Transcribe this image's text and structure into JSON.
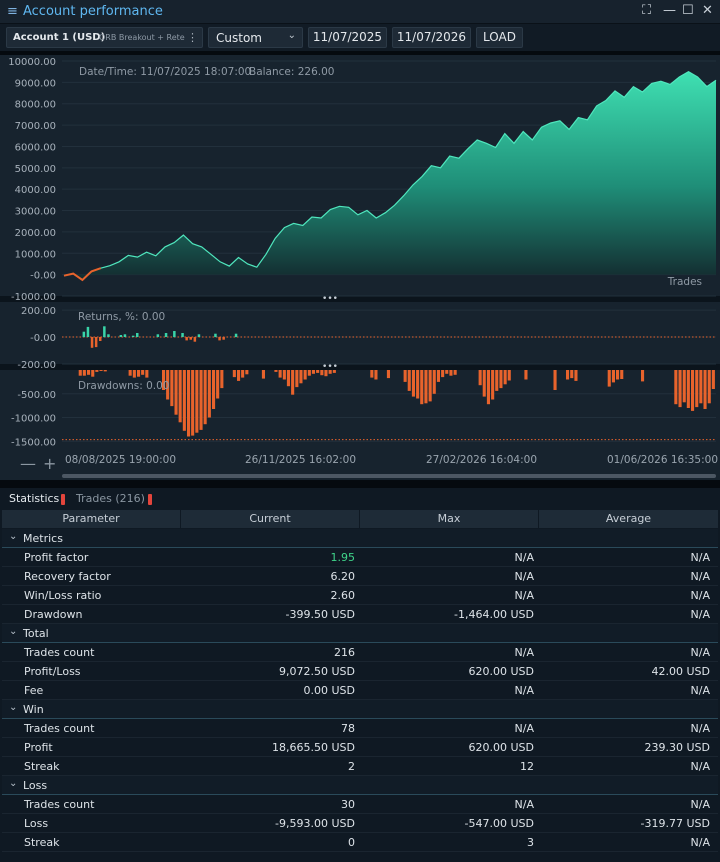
{
  "window": {
    "title": "Account performance",
    "buttons": [
      "⛶",
      "—",
      "☐",
      "✕"
    ]
  },
  "toolbar": {
    "account_name": "Account 1 (USD)",
    "strategy_name": "ORB Breakout + Rete",
    "range_select": "Custom",
    "date_from": "11/07/2025",
    "date_to": "11/07/2026",
    "load_label": "LOAD"
  },
  "chart": {
    "info_datetime": "Date/Time: 11/07/2025 18:07:00",
    "info_balance": "Balance: 226.00",
    "trades_label": "Trades",
    "returns_label": "Returns, %: 0.00",
    "drawdowns_label": "Drawdowns: 0.00",
    "x_ticks": [
      "08/08/2025 19:00:00",
      "26/11/2025 16:02:00",
      "27/02/2026 16:04:00",
      "01/06/2026 16:35:00"
    ],
    "colors": {
      "accent": "#39d4a8",
      "negative": "#e8632c",
      "panel_bg": "#17232e"
    }
  },
  "chart_data": [
    {
      "type": "area",
      "name": "balance",
      "y_ticks": [
        "10000.00",
        "9000.00",
        "8000.00",
        "7000.00",
        "6000.00",
        "5000.00",
        "4000.00",
        "3000.00",
        "2000.00",
        "1000.00",
        "-0.00",
        "-1000.00"
      ],
      "ylim": [
        -1000,
        10000
      ],
      "points": [
        [
          0,
          -50
        ],
        [
          1,
          50
        ],
        [
          2,
          -250
        ],
        [
          3,
          150
        ],
        [
          4,
          300
        ],
        [
          5,
          420
        ],
        [
          6,
          600
        ],
        [
          7,
          900
        ],
        [
          8,
          820
        ],
        [
          9,
          1050
        ],
        [
          10,
          880
        ],
        [
          11,
          1300
        ],
        [
          12,
          1500
        ],
        [
          13,
          1850
        ],
        [
          14,
          1450
        ],
        [
          15,
          1300
        ],
        [
          16,
          950
        ],
        [
          17,
          600
        ],
        [
          18,
          400
        ],
        [
          19,
          800
        ],
        [
          20,
          500
        ],
        [
          21,
          350
        ],
        [
          22,
          950
        ],
        [
          23,
          1700
        ],
        [
          24,
          2200
        ],
        [
          25,
          2400
        ],
        [
          26,
          2300
        ],
        [
          27,
          2700
        ],
        [
          28,
          2650
        ],
        [
          29,
          3050
        ],
        [
          30,
          3200
        ],
        [
          31,
          3150
        ],
        [
          32,
          2800
        ],
        [
          33,
          3000
        ],
        [
          34,
          2650
        ],
        [
          35,
          2900
        ],
        [
          36,
          3250
        ],
        [
          37,
          3700
        ],
        [
          38,
          4200
        ],
        [
          39,
          4600
        ],
        [
          40,
          5100
        ],
        [
          41,
          5000
        ],
        [
          42,
          5550
        ],
        [
          43,
          5450
        ],
        [
          44,
          5900
        ],
        [
          45,
          6300
        ],
        [
          46,
          6150
        ],
        [
          47,
          5950
        ],
        [
          48,
          6600
        ],
        [
          49,
          6150
        ],
        [
          50,
          6700
        ],
        [
          51,
          6300
        ],
        [
          52,
          6900
        ],
        [
          53,
          7100
        ],
        [
          54,
          7200
        ],
        [
          55,
          6800
        ],
        [
          56,
          7350
        ],
        [
          57,
          7250
        ],
        [
          58,
          7900
        ],
        [
          59,
          8150
        ],
        [
          60,
          8600
        ],
        [
          61,
          8300
        ],
        [
          62,
          8800
        ],
        [
          63,
          8550
        ],
        [
          64,
          8950
        ],
        [
          65,
          9050
        ],
        [
          66,
          8900
        ],
        [
          67,
          9250
        ],
        [
          68,
          9500
        ],
        [
          69,
          9250
        ],
        [
          70,
          8800
        ],
        [
          71,
          9100
        ]
      ]
    },
    {
      "type": "bar",
      "name": "returns",
      "y_ticks": [
        "200.00",
        "-0.00",
        "-200.00"
      ],
      "ylim": [
        -200,
        260
      ],
      "values": [
        0,
        0,
        0,
        0,
        0,
        40,
        75,
        -80,
        -75,
        -30,
        80,
        20,
        0,
        0,
        15,
        20,
        0,
        10,
        30,
        0,
        0,
        0,
        0,
        20,
        0,
        30,
        0,
        45,
        0,
        30,
        -25,
        -20,
        -35,
        20,
        0,
        0,
        0,
        25,
        -25,
        -20,
        0,
        0,
        25,
        0,
        0,
        0,
        0,
        0,
        0,
        0,
        0,
        0,
        0,
        0,
        0,
        0,
        0,
        0,
        0,
        0,
        0,
        0,
        0,
        0,
        0,
        0,
        0,
        0,
        0,
        0,
        0,
        0,
        0,
        0,
        0,
        0,
        0,
        0,
        0,
        0,
        0,
        0,
        0,
        0,
        0,
        0,
        0,
        0,
        0,
        0,
        0,
        0,
        0,
        0,
        0,
        0,
        0,
        0,
        0,
        0,
        0,
        0,
        0,
        0,
        0,
        0,
        0,
        0,
        0,
        0,
        0,
        0,
        0,
        0,
        0,
        0,
        0,
        0,
        0,
        0,
        0,
        0,
        0,
        0,
        0,
        0,
        0,
        0,
        0,
        0,
        0,
        0,
        0,
        0,
        0,
        0,
        0,
        0,
        0,
        0,
        0,
        0,
        0,
        0,
        0,
        0,
        0,
        0,
        0,
        0,
        0,
        0,
        0,
        0,
        0,
        0,
        0,
        0,
        0
      ]
    },
    {
      "type": "bar",
      "name": "drawdowns",
      "y_ticks": [
        "-500.00",
        "-1000.00",
        "-1500.00"
      ],
      "ylim": [
        -1620,
        0
      ],
      "values": [
        0,
        0,
        0,
        0,
        -120,
        -120,
        -100,
        -140,
        -40,
        -20,
        -30,
        0,
        0,
        0,
        0,
        0,
        -120,
        -160,
        -140,
        -100,
        -160,
        0,
        0,
        0,
        -420,
        -620,
        -760,
        -940,
        -1100,
        -1280,
        -1400,
        -1380,
        -1320,
        -1260,
        -1140,
        -1000,
        -820,
        -600,
        -380,
        0,
        0,
        -150,
        -230,
        -160,
        -90,
        0,
        0,
        0,
        -180,
        0,
        0,
        -40,
        -160,
        -200,
        -340,
        -520,
        -360,
        -280,
        -200,
        -120,
        -80,
        -60,
        -110,
        -130,
        -80,
        -60,
        0,
        0,
        0,
        0,
        0,
        0,
        0,
        0,
        -160,
        -200,
        0,
        0,
        -170,
        0,
        0,
        0,
        -250,
        -440,
        -560,
        -600,
        -720,
        -700,
        -660,
        -500,
        -250,
        -150,
        -80,
        -120,
        -100,
        0,
        0,
        0,
        0,
        0,
        -320,
        -560,
        -720,
        -620,
        -440,
        -380,
        -300,
        -220,
        0,
        0,
        0,
        -200,
        0,
        0,
        0,
        0,
        0,
        0,
        -420,
        0,
        0,
        -200,
        -170,
        -230,
        0,
        0,
        0,
        0,
        0,
        0,
        0,
        -350,
        -260,
        -200,
        -190,
        0,
        0,
        0,
        0,
        -240,
        0,
        0,
        0,
        0,
        0,
        0,
        0,
        -720,
        -780,
        -680,
        -800,
        -860,
        -780,
        -700,
        -820,
        -700,
        -400
      ],
      "dotted_reference": -1464
    }
  ],
  "tabs": [
    {
      "label": "Statistics",
      "active": true
    },
    {
      "label": "Trades (216)",
      "active": false
    }
  ],
  "table": {
    "columns": [
      "Parameter",
      "Current",
      "Max",
      "Average"
    ],
    "groups": [
      {
        "name": "Metrics",
        "rows": [
          {
            "param": "Profit factor",
            "current": "1.95",
            "max": "N/A",
            "avg": "N/A",
            "positive": true
          },
          {
            "param": "Recovery factor",
            "current": "6.20",
            "max": "N/A",
            "avg": "N/A"
          },
          {
            "param": "Win/Loss ratio",
            "current": "2.60",
            "max": "N/A",
            "avg": "N/A"
          },
          {
            "param": "Drawdown",
            "current": "-399.50 USD",
            "max": "-1,464.00 USD",
            "avg": "N/A"
          }
        ]
      },
      {
        "name": "Total",
        "rows": [
          {
            "param": "Trades count",
            "current": "216",
            "max": "N/A",
            "avg": "N/A"
          },
          {
            "param": "Profit/Loss",
            "current": "9,072.50 USD",
            "max": "620.00 USD",
            "avg": "42.00 USD"
          },
          {
            "param": "Fee",
            "current": "0.00 USD",
            "max": "N/A",
            "avg": "N/A"
          }
        ]
      },
      {
        "name": "Win",
        "rows": [
          {
            "param": "Trades count",
            "current": "78",
            "max": "N/A",
            "avg": "N/A"
          },
          {
            "param": "Profit",
            "current": "18,665.50 USD",
            "max": "620.00 USD",
            "avg": "239.30 USD"
          },
          {
            "param": "Streak",
            "current": "2",
            "max": "12",
            "avg": "N/A"
          }
        ]
      },
      {
        "name": "Loss",
        "rows": [
          {
            "param": "Trades count",
            "current": "30",
            "max": "N/A",
            "avg": "N/A"
          },
          {
            "param": "Loss",
            "current": "-9,593.00 USD",
            "max": "-547.00 USD",
            "avg": "-319.77 USD"
          },
          {
            "param": "Streak",
            "current": "0",
            "max": "3",
            "avg": "N/A"
          }
        ]
      }
    ]
  }
}
